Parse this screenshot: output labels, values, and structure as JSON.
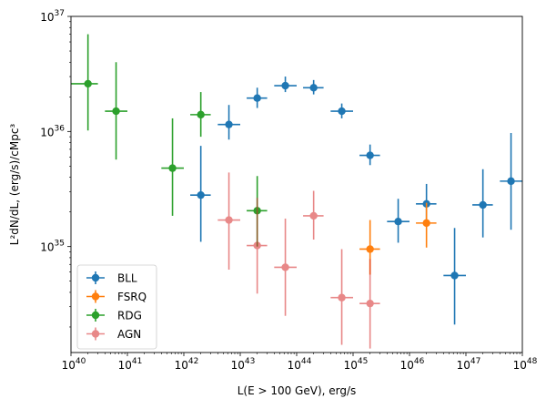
{
  "chart_data": {
    "type": "scatter",
    "title": "",
    "xlabel_parts": {
      "pre": "L(E > 100 GeV), erg/s"
    },
    "ylabel": "L²dN/dL, (erg/s)/cMpc³",
    "x_scale": "log",
    "y_scale": "log",
    "xlim": [
      1e+40,
      1e+48
    ],
    "ylim": [
      1.2e+34,
      1e+37
    ],
    "x_tick_exponents": [
      40,
      41,
      42,
      43,
      44,
      45,
      46,
      47,
      48
    ],
    "y_tick_exponents": [
      35,
      36,
      37
    ],
    "tick_base": "10",
    "legend_position": "lower-left",
    "series": [
      {
        "name": "BLL",
        "color": "#1f77b4",
        "alpha": 1.0,
        "points": [
          {
            "x": 2e+42,
            "y": 2.8e+35,
            "xerr": [
              1.3e+42,
              3e+42
            ],
            "yerr": [
              1.1e+35,
              7.5e+35
            ]
          },
          {
            "x": 6.3e+42,
            "y": 1.15e+36,
            "xerr": [
              4e+42,
              1e+43
            ],
            "yerr": [
              8.5e+35,
              1.7e+36
            ]
          },
          {
            "x": 2e+43,
            "y": 1.95e+36,
            "xerr": [
              1.3e+43,
              3e+43
            ],
            "yerr": [
              1.6e+36,
              2.4e+36
            ]
          },
          {
            "x": 6.3e+43,
            "y": 2.5e+36,
            "xerr": [
              4e+43,
              1e+44
            ],
            "yerr": [
              2.2e+36,
              3e+36
            ]
          },
          {
            "x": 2e+44,
            "y": 2.4e+36,
            "xerr": [
              1.3e+44,
              3e+44
            ],
            "yerr": [
              2.1e+36,
              2.8e+36
            ]
          },
          {
            "x": 6.3e+44,
            "y": 1.5e+36,
            "xerr": [
              4e+44,
              1e+45
            ],
            "yerr": [
              1.3e+36,
              1.75e+36
            ]
          },
          {
            "x": 2e+45,
            "y": 6.2e+35,
            "xerr": [
              1.3e+45,
              3e+45
            ],
            "yerr": [
              5.1e+35,
              7.7e+35
            ]
          },
          {
            "x": 6.3e+45,
            "y": 1.65e+35,
            "xerr": [
              4e+45,
              1e+46
            ],
            "yerr": [
              1.08e+35,
              2.6e+35
            ]
          },
          {
            "x": 2e+46,
            "y": 2.35e+35,
            "xerr": [
              1.3e+46,
              3e+46
            ],
            "yerr": [
              1.65e+35,
              3.5e+35
            ]
          },
          {
            "x": 6.3e+46,
            "y": 5.6e+34,
            "xerr": [
              4e+46,
              1e+47
            ],
            "yerr": [
              2.1e+34,
              1.45e+35
            ]
          },
          {
            "x": 2e+47,
            "y": 2.3e+35,
            "xerr": [
              1.3e+47,
              3e+47
            ],
            "yerr": [
              1.2e+35,
              4.7e+35
            ]
          },
          {
            "x": 6.3e+47,
            "y": 3.7e+35,
            "xerr": [
              4e+47,
              1e+48
            ],
            "yerr": [
              1.4e+35,
              9.7e+35
            ]
          }
        ]
      },
      {
        "name": "FSRQ",
        "color": "#ff7f0e",
        "alpha": 1.0,
        "points": [
          {
            "x": 2e+45,
            "y": 9.5e+34,
            "xerr": [
              1.3e+45,
              3e+45
            ],
            "yerr": [
              5.7e+34,
              1.7e+35
            ]
          },
          {
            "x": 2e+46,
            "y": 1.6e+35,
            "xerr": [
              1.3e+46,
              3e+46
            ],
            "yerr": [
              9.8e+34,
              2.4e+35
            ]
          }
        ]
      },
      {
        "name": "RDG",
        "color": "#2ca02c",
        "alpha": 1.0,
        "points": [
          {
            "x": 2e+40,
            "y": 2.6e+36,
            "xerr": [
              1e+40,
              3e+40
            ],
            "yerr": [
              1.02e+36,
              7e+36
            ]
          },
          {
            "x": 6.3e+40,
            "y": 1.5e+36,
            "xerr": [
              4e+40,
              1e+41
            ],
            "yerr": [
              5.7e+35,
              4e+36
            ]
          },
          {
            "x": 6.3e+41,
            "y": 4.8e+35,
            "xerr": [
              4e+41,
              1e+42
            ],
            "yerr": [
              1.85e+35,
              1.3e+36
            ]
          },
          {
            "x": 2e+42,
            "y": 1.4e+36,
            "xerr": [
              1.3e+42,
              3e+42
            ],
            "yerr": [
              9e+35,
              2.2e+36
            ]
          },
          {
            "x": 2e+43,
            "y": 2.05e+35,
            "xerr": [
              1.3e+43,
              3e+43
            ],
            "yerr": [
              1e+35,
              4.1e+35
            ]
          }
        ]
      },
      {
        "name": "AGN",
        "color": "#d62728",
        "alpha": 0.55,
        "points": [
          {
            "x": 6.3e+42,
            "y": 1.7e+35,
            "xerr": [
              4e+42,
              1e+43
            ],
            "yerr": [
              6.3e+34,
              4.4e+35
            ]
          },
          {
            "x": 2e+43,
            "y": 1.02e+35,
            "xerr": [
              1.3e+43,
              3e+43
            ],
            "yerr": [
              3.9e+34,
              2.65e+35
            ]
          },
          {
            "x": 6.3e+43,
            "y": 6.6e+34,
            "xerr": [
              4e+43,
              1e+44
            ],
            "yerr": [
              2.5e+34,
              1.75e+35
            ]
          },
          {
            "x": 2e+44,
            "y": 1.85e+35,
            "xerr": [
              1.3e+44,
              3e+44
            ],
            "yerr": [
              1.15e+35,
              3.05e+35
            ]
          },
          {
            "x": 6.3e+44,
            "y": 3.6e+34,
            "xerr": [
              4e+44,
              1e+45
            ],
            "yerr": [
              1.4e+34,
              9.5e+34
            ]
          },
          {
            "x": 2e+45,
            "y": 3.2e+34,
            "xerr": [
              1.3e+45,
              3e+45
            ],
            "yerr": [
              1.3e+34,
              7.8e+34
            ]
          }
        ]
      }
    ]
  }
}
